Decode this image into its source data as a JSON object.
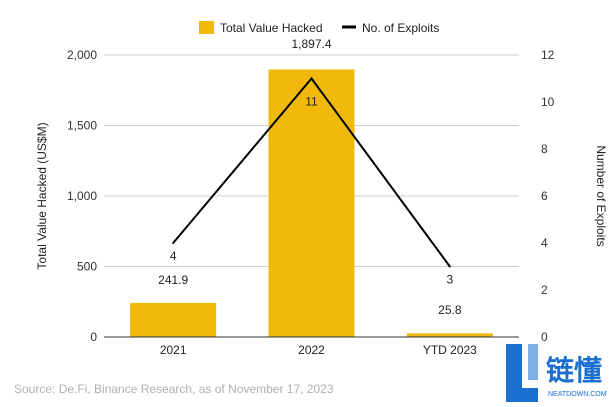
{
  "chart_data": {
    "type": "bar+line",
    "categories": [
      "2021",
      "2022",
      "YTD 2023"
    ],
    "series": [
      {
        "name": "Total Value Hacked",
        "kind": "bar",
        "axis": "left",
        "values": [
          241.9,
          1897.4,
          25.8
        ],
        "labels": [
          "241.9",
          "1,897.4",
          "25.8"
        ],
        "color": "#F0B90B"
      },
      {
        "name": "No. of Exploits",
        "kind": "line",
        "axis": "right",
        "values": [
          4,
          11,
          3
        ],
        "labels": [
          "4",
          "11",
          "3"
        ],
        "color": "#000000"
      }
    ],
    "ylabel": "Total Value Hacked (US$M)",
    "y2label": "Number of Exploits",
    "ylim": [
      0,
      2000
    ],
    "y2lim": [
      0,
      12
    ],
    "yticks": [
      "0",
      "500",
      "1,000",
      "1,500",
      "2,000"
    ],
    "y2ticks": [
      "0",
      "2",
      "4",
      "6",
      "8",
      "10",
      "12"
    ],
    "legend_position": "top"
  },
  "source": "Source: De.Fi, Binance Research, as of November 17, 2023",
  "watermark": {
    "cn_text": "链懂",
    "en_text": "NEATDOWN.COM",
    "color": "#1a6fd1"
  }
}
